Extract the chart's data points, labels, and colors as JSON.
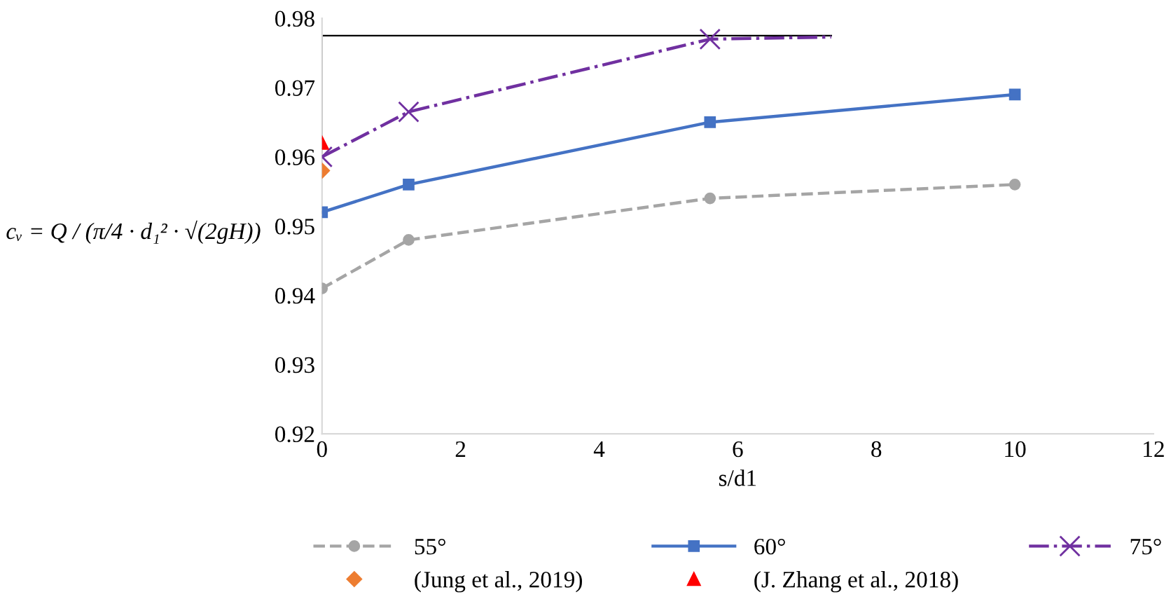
{
  "chart_data": {
    "type": "line",
    "xlabel": "s/d1",
    "ylabel": "cᵥ = Q / (π/4 · d₁² · √(2gH))",
    "xlim": [
      0,
      12
    ],
    "xticks": [
      0,
      2,
      4,
      6,
      8,
      10,
      12
    ],
    "ylim": [
      0.92,
      0.98
    ],
    "yticks": [
      0.92,
      0.93,
      0.94,
      0.95,
      0.96,
      0.97,
      0.98
    ],
    "grid": false,
    "legend": "bottom",
    "series": [
      {
        "name": "55°",
        "color": "#a5a5a5",
        "marker": "circle",
        "line_style": "dashed",
        "x": [
          0,
          1.25,
          5.6,
          10
        ],
        "values": [
          0.941,
          0.948,
          0.954,
          0.956
        ]
      },
      {
        "name": "60°",
        "color": "#4472c4",
        "marker": "square",
        "line_style": "solid",
        "x": [
          0,
          1.25,
          5.6,
          10
        ],
        "values": [
          0.952,
          0.956,
          0.965,
          0.969
        ]
      },
      {
        "name": "75°",
        "color": "#7030a0",
        "marker": "cross",
        "line_style": "dashdot",
        "x": [
          0,
          1.25,
          5.6,
          7.35
        ],
        "values": [
          0.96,
          0.9665,
          0.977,
          0.9773
        ]
      },
      {
        "name": "(Jung et al., 2019)",
        "color": "#ed7d31",
        "marker": "diamond",
        "line_style": "none",
        "x": [
          0
        ],
        "values": [
          0.958
        ]
      },
      {
        "name": "(J. Zhang et al., 2018)",
        "color": "#ff0000",
        "marker": "triangle",
        "line_style": "none",
        "x": [
          0
        ],
        "values": [
          0.962
        ]
      },
      {
        "color": "#000000",
        "marker": "none",
        "line_style": "solid",
        "x": [
          0,
          0,
          7.35
        ],
        "values": [
          0.96,
          0.9775,
          0.9775
        ]
      }
    ]
  }
}
